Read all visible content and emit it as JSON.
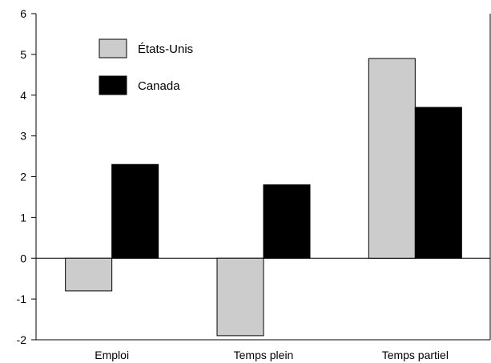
{
  "chart_data": {
    "type": "bar",
    "title": "",
    "xlabel": "",
    "ylabel": "",
    "categories": [
      "Emploi",
      "Temps plein",
      "Temps partiel"
    ],
    "series": [
      {
        "name": "États-Unis",
        "color": "#cccccc",
        "values": [
          -0.8,
          -1.9,
          4.9
        ]
      },
      {
        "name": "Canada",
        "color": "#000000",
        "values": [
          2.3,
          1.8,
          3.7
        ]
      }
    ],
    "ylim": [
      -2,
      6
    ],
    "yticks": [
      "-2",
      "-1",
      "0",
      "1",
      "2",
      "3",
      "4",
      "5",
      "6"
    ],
    "grid": false,
    "legend_position": "top-left"
  }
}
